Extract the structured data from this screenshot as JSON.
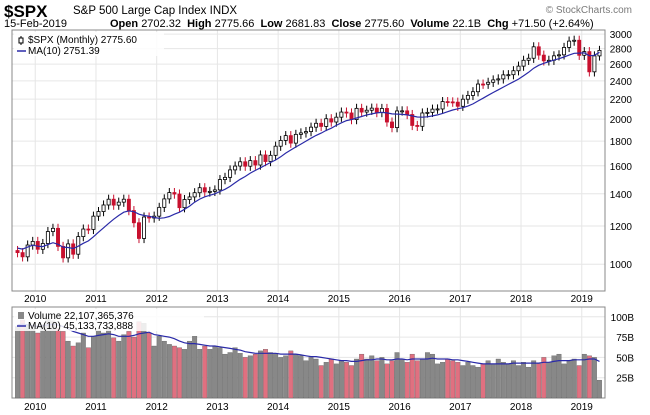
{
  "header": {
    "symbol": "$SPX",
    "name": "S&P 500 Large Cap Index",
    "exchange": "INDX",
    "date": "15-Feb-2019",
    "open_label": "Open",
    "open": "2702.32",
    "high_label": "High",
    "high": "2775.66",
    "low_label": "Low",
    "low": "2681.83",
    "close_label": "Close",
    "close": "2775.60",
    "volume_label": "Volume",
    "volume": "22.1B",
    "chg_label": "Chg",
    "chg": "+71.50 (+2.64%)",
    "watermark": "© StockCharts.com"
  },
  "legend": {
    "price_series": "$SPX (Monthly) 2775.60",
    "price_ma": "MA(10) 2751.39",
    "volume_series": "Volume 22,107,365,376",
    "volume_ma": "MA(10) 45,133,733,888"
  },
  "colors": {
    "up": "#000000",
    "down": "#c8102e",
    "ma": "#2a2aa8",
    "vol_up": "#888888",
    "vol_down": "#e07080",
    "grid": "#e6e6e6"
  },
  "chart_data": {
    "type": "candlestick",
    "interval": "monthly",
    "start": "2009-09",
    "price_axis": {
      "scale": "log",
      "ticks": [
        1000,
        1200,
        1400,
        1600,
        1800,
        2000,
        2200,
        2400,
        2600,
        2800,
        3000
      ]
    },
    "volume_axis": {
      "ticks": [
        "25B",
        "50B",
        "75B",
        "100B"
      ],
      "tick_values": [
        25,
        50,
        75,
        100
      ]
    },
    "x_labels": [
      "2010",
      "2011",
      "2012",
      "2013",
      "2014",
      "2015",
      "2016",
      "2017",
      "2018",
      "2019"
    ],
    "close": [
      1057,
      1036,
      1096,
      1115,
      1074,
      1104,
      1169,
      1187,
      1089,
      1031,
      1102,
      1049,
      1141,
      1183,
      1181,
      1258,
      1286,
      1327,
      1364,
      1326,
      1345,
      1364,
      1292,
      1219,
      1131,
      1253,
      1247,
      1258,
      1312,
      1366,
      1408,
      1398,
      1310,
      1362,
      1379,
      1407,
      1441,
      1412,
      1416,
      1426,
      1498,
      1514,
      1569,
      1598,
      1631,
      1597,
      1640,
      1606,
      1685,
      1633,
      1682,
      1757,
      1806,
      1848,
      1783,
      1859,
      1872,
      1884,
      1924,
      1960,
      1931,
      2003,
      1972,
      2018,
      2068,
      2059,
      1995,
      2105,
      2068,
      2086,
      2107,
      2063,
      2104,
      1972,
      1920,
      2079,
      2080,
      2044,
      1940,
      1932,
      2059,
      2065,
      2097,
      2099,
      2174,
      2171,
      2168,
      2126,
      2199,
      2239,
      2279,
      2364,
      2362,
      2384,
      2411,
      2423,
      2470,
      2472,
      2519,
      2575,
      2648,
      2674,
      2824,
      2714,
      2641,
      2648,
      2705,
      2718,
      2816,
      2902,
      2914,
      2712,
      2760,
      2506,
      2704,
      2776
    ],
    "volume": [
      88,
      96,
      90,
      85,
      80,
      90,
      98,
      95,
      86,
      82,
      70,
      64,
      68,
      80,
      62,
      76,
      84,
      80,
      88,
      74,
      70,
      78,
      82,
      75,
      94,
      92,
      80,
      64,
      76,
      70,
      66,
      64,
      62,
      60,
      70,
      76,
      60,
      64,
      60,
      63,
      62,
      54,
      56,
      62,
      55,
      50,
      52,
      54,
      58,
      60,
      56,
      55,
      50,
      52,
      58,
      54,
      52,
      46,
      50,
      48,
      40,
      44,
      48,
      42,
      46,
      44,
      40,
      48,
      54,
      48,
      52,
      46,
      50,
      42,
      46,
      56,
      48,
      44,
      54,
      46,
      48,
      56,
      54,
      42,
      44,
      48,
      46,
      44,
      40,
      44,
      40,
      38,
      42,
      46,
      42,
      48,
      44,
      42,
      46,
      40,
      44,
      38,
      46,
      42,
      50,
      44,
      52,
      54,
      42,
      46,
      48,
      40,
      54,
      52,
      50,
      22
    ],
    "ma10_price": [
      1080,
      1075,
      1085,
      1095,
      1090,
      1088,
      1098,
      1108,
      1100,
      1085,
      1083,
      1078,
      1090,
      1105,
      1118,
      1140,
      1165,
      1190,
      1215,
      1240,
      1262,
      1282,
      1290,
      1285,
      1270,
      1262,
      1258,
      1250,
      1245,
      1248,
      1256,
      1270,
      1282,
      1300,
      1320,
      1345,
      1365,
      1380,
      1390,
      1400,
      1415,
      1430,
      1450,
      1475,
      1500,
      1520,
      1545,
      1565,
      1585,
      1605,
      1625,
      1645,
      1670,
      1700,
      1725,
      1750,
      1775,
      1800,
      1825,
      1850,
      1870,
      1895,
      1915,
      1940,
      1965,
      1985,
      1995,
      2010,
      2025,
      2040,
      2050,
      2060,
      2065,
      2060,
      2050,
      2048,
      2045,
      2040,
      2030,
      2020,
      2018,
      2022,
      2030,
      2040,
      2055,
      2072,
      2088,
      2100,
      2112,
      2128,
      2150,
      2180,
      2210,
      2240,
      2270,
      2300,
      2330,
      2360,
      2390,
      2420,
      2460,
      2500,
      2550,
      2585,
      2610,
      2630,
      2650,
      2668,
      2690,
      2715,
      2738,
      2740,
      2745,
      2705,
      2712,
      2751
    ],
    "ma10_volume": [
      90,
      91,
      90,
      89,
      88,
      89,
      90,
      91,
      90,
      88,
      85,
      82,
      80,
      78,
      76,
      76,
      77,
      78,
      79,
      78,
      76,
      76,
      76,
      77,
      79,
      80,
      81,
      78,
      77,
      76,
      75,
      73,
      70,
      68,
      67,
      67,
      66,
      65,
      64,
      64,
      63,
      62,
      61,
      60,
      59,
      57,
      56,
      55,
      55,
      55,
      55,
      55,
      54,
      54,
      54,
      54,
      53,
      52,
      51,
      51,
      50,
      49,
      48,
      47,
      46,
      46,
      45,
      45,
      46,
      47,
      47,
      48,
      48,
      47,
      47,
      48,
      48,
      47,
      48,
      48,
      48,
      48,
      49,
      48,
      48,
      48,
      47,
      47,
      46,
      45,
      44,
      43,
      42,
      42,
      42,
      42,
      42,
      42,
      43,
      43,
      43,
      43,
      43,
      43,
      44,
      44,
      45,
      46,
      46,
      46,
      47,
      47,
      47,
      48,
      48,
      45
    ]
  }
}
